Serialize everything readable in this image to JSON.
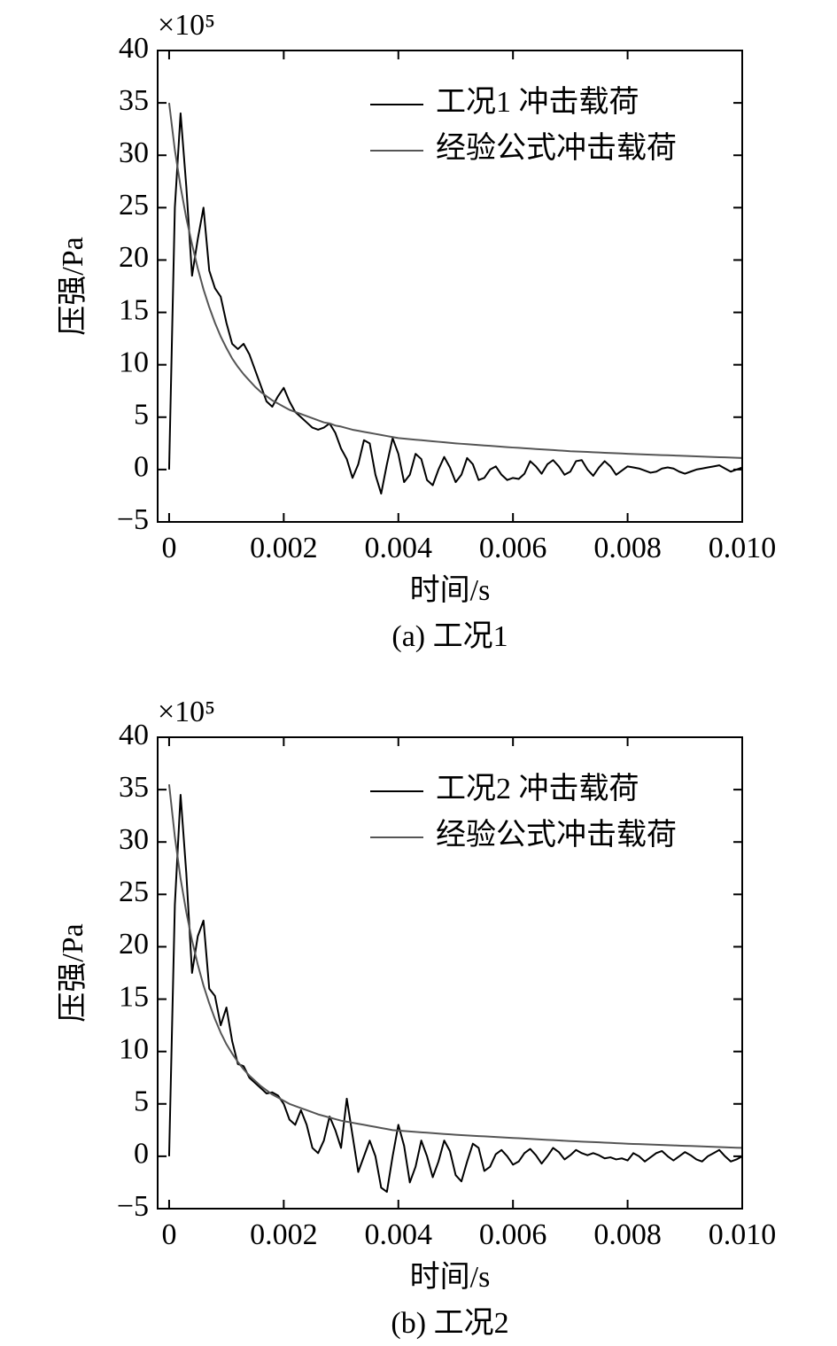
{
  "chart_data": [
    {
      "type": "line",
      "caption": "(a) 工况1",
      "xlabel": "时间/s",
      "ylabel": "压强/Pa",
      "y_scale": "×10⁵",
      "legend": "upper right",
      "grid": false,
      "xlim": [
        -0.0002,
        0.01
      ],
      "ylim": [
        -5,
        40
      ],
      "xticks": [
        0,
        0.002,
        0.004,
        0.006,
        0.008,
        {
          "value": 0.01,
          "label": "0.010"
        }
      ],
      "yticks": [
        {
          "value": -5,
          "label": "−5"
        },
        0,
        5,
        10,
        15,
        20,
        25,
        30,
        35,
        40
      ],
      "x": [
        0,
        0.0001,
        0.0002,
        0.0003,
        0.0004,
        0.0005,
        0.0006,
        0.0007,
        0.0008,
        0.0009,
        0.001,
        0.0011,
        0.0012,
        0.0013,
        0.0014,
        0.0015,
        0.0016,
        0.0017,
        0.0018,
        0.0019,
        0.002,
        0.0021,
        0.0022,
        0.0023,
        0.0024,
        0.0025,
        0.0026,
        0.0027,
        0.0028,
        0.0029,
        0.003,
        0.0031,
        0.0032,
        0.0033,
        0.0034,
        0.0035,
        0.0036,
        0.0037,
        0.0038,
        0.0039,
        0.004,
        0.0041,
        0.0042,
        0.0043,
        0.0044,
        0.0045,
        0.0046,
        0.0047,
        0.0048,
        0.0049,
        0.005,
        0.0051,
        0.0052,
        0.0053,
        0.0054,
        0.0055,
        0.0056,
        0.0057,
        0.0058,
        0.0059,
        0.006,
        0.0061,
        0.0062,
        0.0063,
        0.0064,
        0.0065,
        0.0066,
        0.0067,
        0.0068,
        0.0069,
        0.007,
        0.0071,
        0.0072,
        0.0073,
        0.0074,
        0.0075,
        0.0076,
        0.0077,
        0.0078,
        0.0079,
        0.008,
        0.0081,
        0.0082,
        0.0083,
        0.0084,
        0.0085,
        0.0086,
        0.0087,
        0.0088,
        0.0089,
        0.009,
        0.0091,
        0.0092,
        0.0093,
        0.0094,
        0.0095,
        0.0096,
        0.0097,
        0.0098,
        0.0099,
        0.01
      ],
      "series": [
        {
          "name": "工况1 冲击载荷",
          "color": "#000000",
          "values": [
            0,
            25,
            34,
            27,
            18.5,
            22,
            25,
            19,
            17.3,
            16.5,
            14,
            12,
            11.5,
            12,
            11,
            9.5,
            8,
            6.5,
            6,
            7,
            7.8,
            6.5,
            5.5,
            5,
            4.5,
            4,
            3.8,
            4,
            4.4,
            3.5,
            2,
            1,
            -0.8,
            0.5,
            2.8,
            2.5,
            -0.5,
            -2.3,
            0.5,
            3,
            1.5,
            -1.2,
            -0.5,
            1.5,
            1,
            -1,
            -1.5,
            0,
            1.2,
            0.2,
            -1.2,
            -0.5,
            1.1,
            0.5,
            -1,
            -0.8,
            0,
            0.3,
            -0.5,
            -1,
            -0.8,
            -0.9,
            -0.4,
            0.8,
            0.3,
            -0.4,
            0.5,
            0.9,
            0.3,
            -0.5,
            -0.2,
            0.8,
            0.9,
            0,
            -0.6,
            0.2,
            0.8,
            0.3,
            -0.5,
            -0.1,
            0.3,
            0.2,
            0.1,
            -0.1,
            -0.3,
            -0.2,
            0.1,
            0.2,
            0.1,
            -0.2,
            -0.4,
            -0.2,
            0,
            0.1,
            0.2,
            0.3,
            0.4,
            0.1,
            -0.2,
            0,
            0.2
          ]
        },
        {
          "name": "经验公式冲击载荷",
          "color": "#555555",
          "values": [
            35,
            30.5,
            27,
            24,
            21.5,
            19.2,
            17.2,
            15.5,
            14,
            12.7,
            11.6,
            10.6,
            9.8,
            9.1,
            8.5,
            7.9,
            7.4,
            7,
            6.6,
            6.3,
            6,
            5.7,
            5.5,
            5.3,
            5.1,
            4.9,
            4.7,
            4.5,
            4.4,
            4.2,
            4.1,
            3.95,
            3.8,
            3.7,
            3.6,
            3.5,
            3.4,
            3.3,
            3.2,
            3.1,
            3,
            2.95,
            2.9,
            2.85,
            2.8,
            2.75,
            2.7,
            2.65,
            2.6,
            2.55,
            2.5,
            2.46,
            2.42,
            2.38,
            2.34,
            2.3,
            2.26,
            2.22,
            2.18,
            2.14,
            2.1,
            2.07,
            2.03,
            2,
            1.96,
            1.93,
            1.89,
            1.86,
            1.82,
            1.79,
            1.75,
            1.73,
            1.7,
            1.68,
            1.65,
            1.63,
            1.6,
            1.58,
            1.55,
            1.53,
            1.5,
            1.48,
            1.46,
            1.44,
            1.42,
            1.4,
            1.38,
            1.36,
            1.34,
            1.32,
            1.3,
            1.28,
            1.26,
            1.24,
            1.22,
            1.2,
            1.18,
            1.16,
            1.14,
            1.12,
            1.1
          ]
        }
      ]
    },
    {
      "type": "line",
      "caption": "(b) 工况2",
      "xlabel": "时间/s",
      "ylabel": "压强/Pa",
      "y_scale": "×10⁵",
      "legend": "upper right",
      "grid": false,
      "xlim": [
        -0.0002,
        0.01
      ],
      "ylim": [
        -5,
        40
      ],
      "xticks": [
        0,
        0.002,
        0.004,
        0.006,
        0.008,
        {
          "value": 0.01,
          "label": "0.010"
        }
      ],
      "yticks": [
        {
          "value": -5,
          "label": "−5"
        },
        0,
        5,
        10,
        15,
        20,
        25,
        30,
        35,
        40
      ],
      "x": [
        0,
        0.0001,
        0.0002,
        0.0003,
        0.0004,
        0.0005,
        0.0006,
        0.0007,
        0.0008,
        0.0009,
        0.001,
        0.0011,
        0.0012,
        0.0013,
        0.0014,
        0.0015,
        0.0016,
        0.0017,
        0.0018,
        0.0019,
        0.002,
        0.0021,
        0.0022,
        0.0023,
        0.0024,
        0.0025,
        0.0026,
        0.0027,
        0.0028,
        0.0029,
        0.003,
        0.0031,
        0.0032,
        0.0033,
        0.0034,
        0.0035,
        0.0036,
        0.0037,
        0.0038,
        0.0039,
        0.004,
        0.0041,
        0.0042,
        0.0043,
        0.0044,
        0.0045,
        0.0046,
        0.0047,
        0.0048,
        0.0049,
        0.005,
        0.0051,
        0.0052,
        0.0053,
        0.0054,
        0.0055,
        0.0056,
        0.0057,
        0.0058,
        0.0059,
        0.006,
        0.0061,
        0.0062,
        0.0063,
        0.0064,
        0.0065,
        0.0066,
        0.0067,
        0.0068,
        0.0069,
        0.007,
        0.0071,
        0.0072,
        0.0073,
        0.0074,
        0.0075,
        0.0076,
        0.0077,
        0.0078,
        0.0079,
        0.008,
        0.0081,
        0.0082,
        0.0083,
        0.0084,
        0.0085,
        0.0086,
        0.0087,
        0.0088,
        0.0089,
        0.009,
        0.0091,
        0.0092,
        0.0093,
        0.0094,
        0.0095,
        0.0096,
        0.0097,
        0.0098,
        0.0099,
        0.01
      ],
      "series": [
        {
          "name": "工况2 冲击载荷",
          "color": "#000000",
          "values": [
            0,
            24,
            34.5,
            27,
            17.5,
            21,
            22.5,
            16,
            15.3,
            12.5,
            14.2,
            11,
            8.8,
            8.6,
            7.5,
            7,
            6.5,
            6,
            6.1,
            5.8,
            5,
            3.5,
            3,
            4.4,
            3,
            0.8,
            0.3,
            1.5,
            3.8,
            2.5,
            0.8,
            5.5,
            2,
            -1.5,
            0,
            1.5,
            0,
            -3,
            -3.4,
            0,
            3,
            1,
            -2.5,
            -1,
            1.5,
            0,
            -2,
            -0.5,
            1.5,
            0.5,
            -1.8,
            -2.4,
            -0.5,
            1.2,
            0.8,
            -1.4,
            -1,
            0.2,
            0.6,
            0,
            -0.8,
            -0.5,
            0.3,
            0.7,
            0.1,
            -0.7,
            0,
            0.8,
            0.4,
            -0.3,
            0.1,
            0.6,
            0.3,
            0.1,
            0.3,
            0.1,
            -0.2,
            -0.1,
            -0.3,
            -0.2,
            -0.4,
            0.3,
            0,
            -0.5,
            -0.1,
            0.3,
            0.5,
            0,
            -0.4,
            0,
            0.4,
            0.1,
            -0.3,
            -0.5,
            0,
            0.3,
            0.6,
            0,
            -0.5,
            -0.3,
            0
          ]
        },
        {
          "name": "经验公式冲击载荷",
          "color": "#555555",
          "values": [
            35.5,
            30.5,
            26.5,
            23.3,
            20.6,
            18.3,
            16.3,
            14.6,
            13.1,
            11.8,
            10.7,
            9.8,
            9,
            8.3,
            7.7,
            7.2,
            6.7,
            6.3,
            5.9,
            5.6,
            5.3,
            5,
            4.8,
            4.6,
            4.4,
            4.2,
            4,
            3.85,
            3.7,
            3.55,
            3.4,
            3.3,
            3.2,
            3.1,
            3,
            2.9,
            2.8,
            2.7,
            2.6,
            2.5,
            2.45,
            2.41,
            2.37,
            2.33,
            2.29,
            2.25,
            2.21,
            2.17,
            2.13,
            2.09,
            2.05,
            2.02,
            1.99,
            1.96,
            1.93,
            1.9,
            1.87,
            1.84,
            1.81,
            1.78,
            1.75,
            1.72,
            1.69,
            1.66,
            1.63,
            1.6,
            1.57,
            1.54,
            1.51,
            1.48,
            1.45,
            1.43,
            1.4,
            1.38,
            1.35,
            1.33,
            1.3,
            1.28,
            1.25,
            1.23,
            1.2,
            1.18,
            1.16,
            1.14,
            1.12,
            1.1,
            1.08,
            1.06,
            1.04,
            1.02,
            1,
            0.98,
            0.96,
            0.94,
            0.92,
            0.9,
            0.88,
            0.86,
            0.84,
            0.82,
            0.8
          ]
        }
      ]
    }
  ]
}
